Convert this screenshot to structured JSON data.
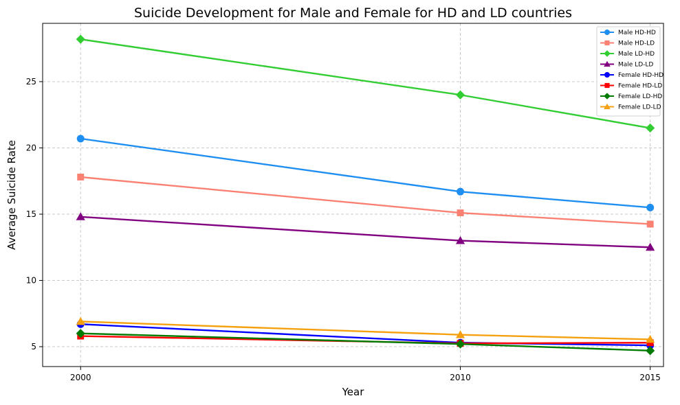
{
  "chart_data": {
    "type": "line",
    "title": "Suicide Development for Male and Female for HD and LD countries",
    "xlabel": "Year",
    "ylabel": "Average Suicide Rate",
    "x": [
      2000,
      2010,
      2015
    ],
    "x_tick_labels": [
      "2000",
      "2010",
      "2015"
    ],
    "xlim": [
      1999,
      2015.35
    ],
    "ylim": [
      3.5,
      29.4
    ],
    "y_ticks": [
      5,
      10,
      15,
      20,
      25
    ],
    "y_tick_labels": [
      "5",
      "10",
      "15",
      "20",
      "25"
    ],
    "grid": true,
    "legend_position": "top-right",
    "series": [
      {
        "name": "Male HD-HD",
        "values": [
          20.7,
          16.7,
          15.5
        ],
        "color": "#1f8ef1",
        "marker": "circle"
      },
      {
        "name": "Male HD-LD",
        "values": [
          17.8,
          15.1,
          14.25
        ],
        "color": "#fa8072",
        "marker": "square"
      },
      {
        "name": "Male LD-HD",
        "values": [
          28.2,
          24.0,
          21.5
        ],
        "color": "#32cd32",
        "marker": "diamond"
      },
      {
        "name": "Male LD-LD",
        "values": [
          14.8,
          13.0,
          12.5
        ],
        "color": "#800080",
        "marker": "triangle"
      },
      {
        "name": "Female HD-HD",
        "values": [
          6.7,
          5.3,
          5.1
        ],
        "color": "#0000ff",
        "marker": "circle"
      },
      {
        "name": "Female HD-LD",
        "values": [
          5.8,
          5.25,
          5.3
        ],
        "color": "#ff0000",
        "marker": "square"
      },
      {
        "name": "Female LD-HD",
        "values": [
          6.0,
          5.2,
          4.7
        ],
        "color": "#007b00",
        "marker": "diamond"
      },
      {
        "name": "Female LD-LD",
        "values": [
          6.9,
          5.9,
          5.55
        ],
        "color": "#f5a00f",
        "marker": "triangle"
      }
    ]
  }
}
